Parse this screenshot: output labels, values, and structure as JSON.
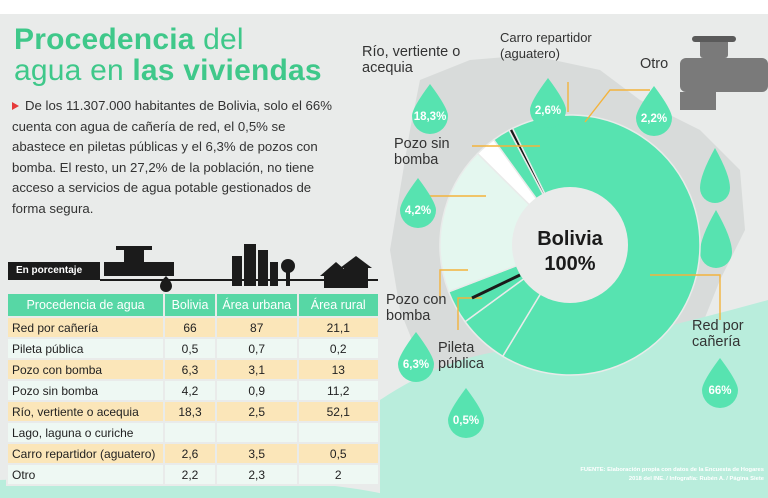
{
  "header": {
    "title_part1": "Procedencia",
    "title_part2": " del",
    "title_part3": "agua en ",
    "title_part4": "las viviendas"
  },
  "intro": "De los 11.307.000 habitantes de Bolivia, solo el 66% cuenta con agua de cañería de red, el 0,5% se abastece en piletas públicas y el 6,3% de pozos con bomba. El resto, un 27,2% de la población, no tiene acceso a servicios de agua potable gestionados de forma segura.",
  "table": {
    "tag": "En porcentaje",
    "headers": [
      "Procedencia de agua",
      "Bolivia",
      "Área urbana",
      "Área rural"
    ],
    "rows": [
      [
        "Red por cañería",
        "66",
        "87",
        "21,1"
      ],
      [
        "Pileta pública",
        "0,5",
        "0,7",
        "0,2"
      ],
      [
        "Pozo con bomba",
        "6,3",
        "3,1",
        "13"
      ],
      [
        "Pozo sin bomba",
        "4,2",
        "0,9",
        "11,2"
      ],
      [
        "Río, vertiente o acequia",
        "18,3",
        "2,5",
        "52,1"
      ],
      [
        "Lago, laguna o curiche",
        "",
        "",
        ""
      ],
      [
        "Carro repartidor (aguatero)",
        "2,6",
        "3,5",
        "0,5"
      ],
      [
        "Otro",
        "2,2",
        "2,3",
        "2"
      ]
    ]
  },
  "chart_data": {
    "type": "pie",
    "center_label_1": "Bolivia",
    "center_label_2": "100%",
    "slices": [
      {
        "label": "Red por cañería",
        "value": 66,
        "display": "66%",
        "color": "#57e3b0"
      },
      {
        "label": "Pileta pública",
        "value": 0.5,
        "display": "0,5%",
        "color": "#1b1b1b"
      },
      {
        "label": "Pozo con bomba",
        "value": 6.3,
        "display": "6,3%",
        "color": "#57e3b0"
      },
      {
        "label": "Pozo sin bomba",
        "value": 4.2,
        "display": "4,2%",
        "color": "#57e3b0"
      },
      {
        "label": "Río, vertiente o acequia",
        "value": 18.3,
        "display": "18,3%",
        "color": "#e4f7ef"
      },
      {
        "label": "Carro repartidor (aguatero)",
        "value": 2.6,
        "display": "2,6%",
        "color": "#ffffff"
      },
      {
        "label": "Otro",
        "value": 2.2,
        "display": "2,2%",
        "color": "#57e3b0"
      }
    ],
    "outside_labels": {
      "rio": "Río, vertiente o acequia",
      "carro": "Carro repartidor (aguatero)",
      "otro": "Otro",
      "pozo_sin": "Pozo sin bomba",
      "pozo_con": "Pozo con bomba",
      "pileta": "Pileta pública",
      "red": "Red por cañería"
    }
  },
  "source": "FUENTE: Elaboración propia con datos de la Encuesta de Hogares 2018 del INE. / Infografía: Rubén A. / Página Siete",
  "colors": {
    "accent": "#57e3b0",
    "title": "#3fc88a",
    "table_odd": "#fbe6b9",
    "table_even": "#eef8f3",
    "dark": "#1b1b1b"
  }
}
